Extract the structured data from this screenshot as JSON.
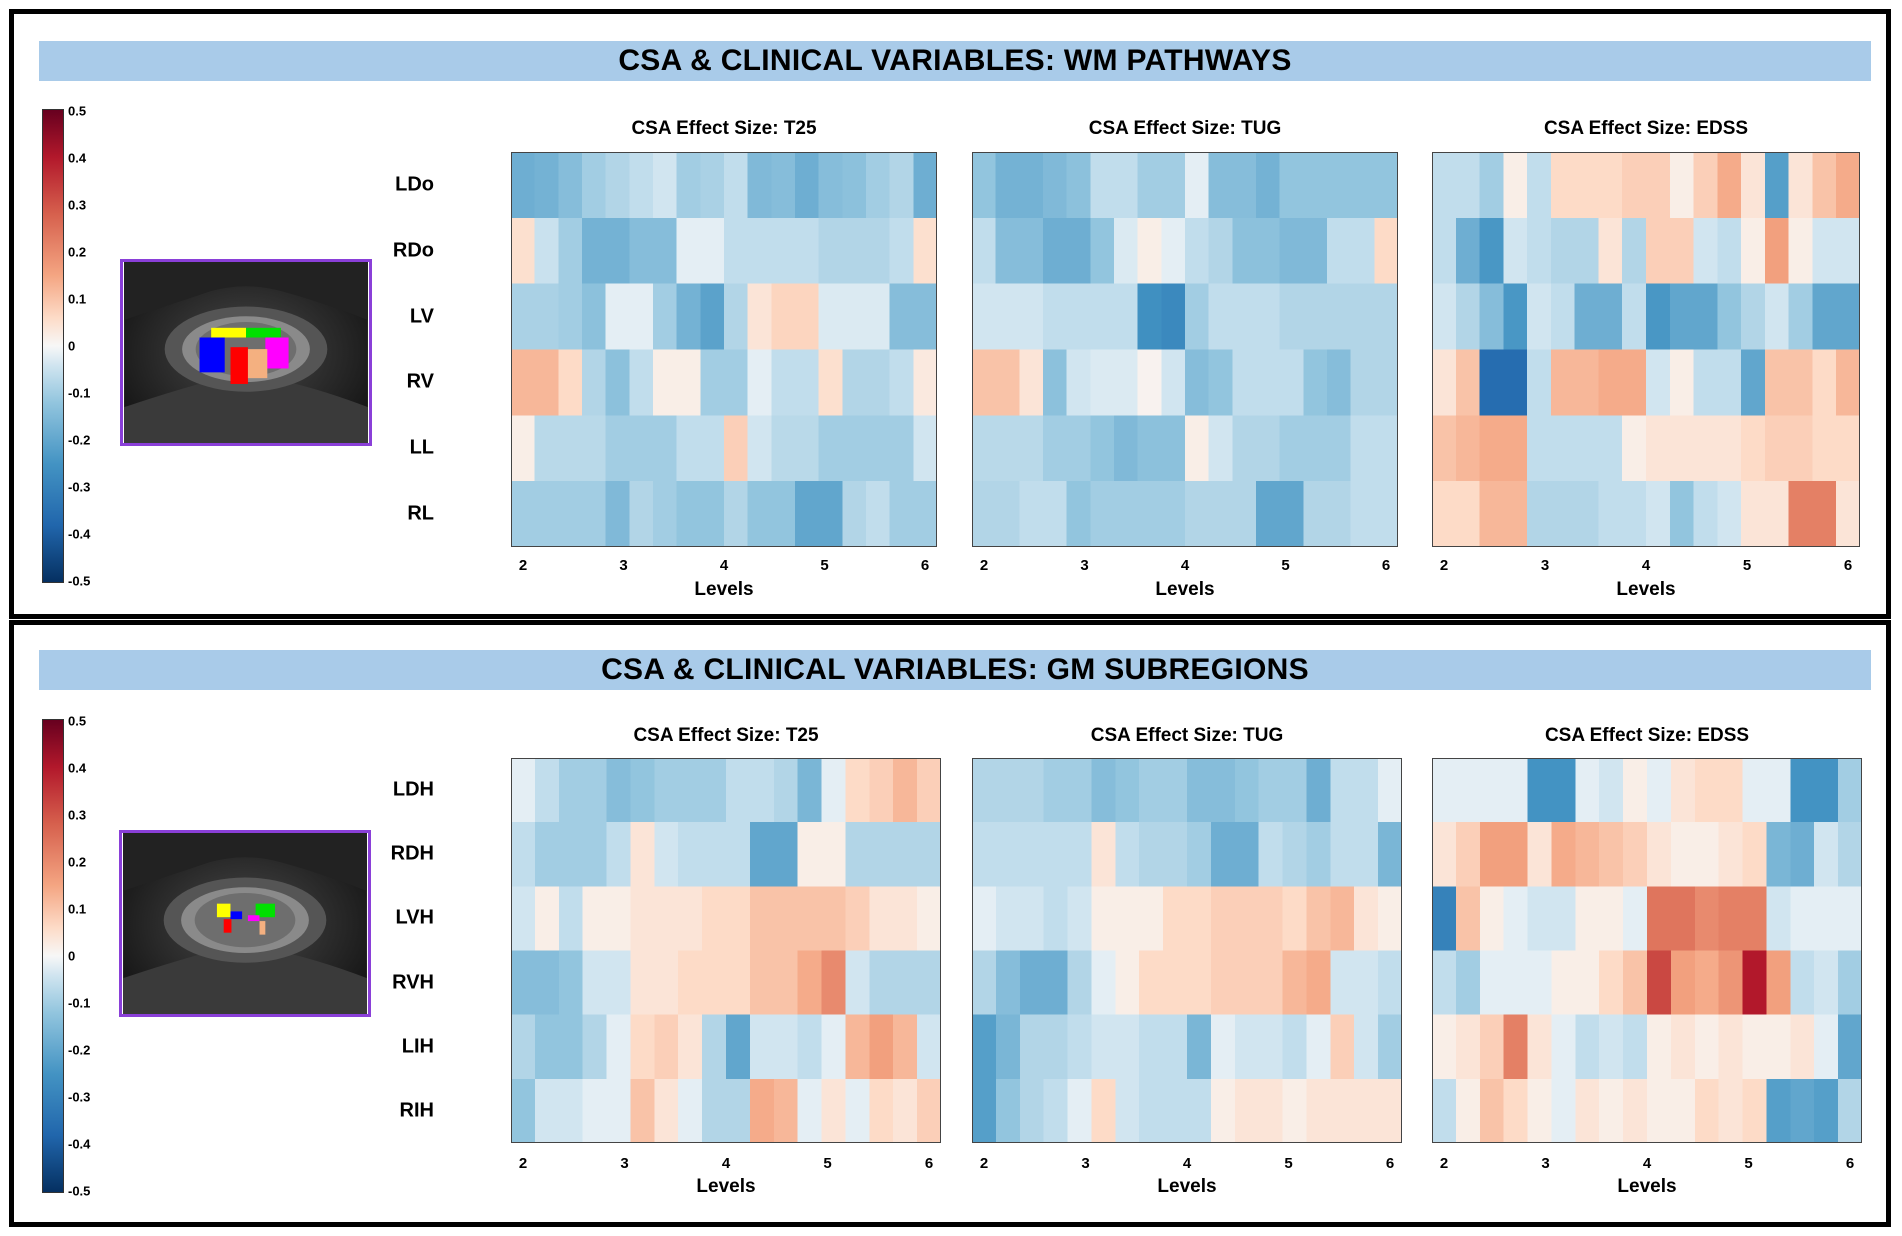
{
  "panels": [
    {
      "title": "CSA & CLINICAL VARIABLES: WM PATHWAYS",
      "rows": [
        "LDo",
        "RDo",
        "LV",
        "RV",
        "LL",
        "RL"
      ],
      "colorbar_ticks": [
        "0.5",
        "0.4",
        "0.3",
        "0.2",
        "0.1",
        "0",
        "-0.1",
        "-0.2",
        "-0.3",
        "-0.4",
        "-0.5"
      ],
      "thumbnail_icon": "spinal-cord-wm-segmentation-image",
      "heatmaps": [
        {
          "title": "CSA Effect Size: T25",
          "xlabel": "Levels",
          "xticks": [
            "2",
            "3",
            "4",
            "5",
            "6"
          ],
          "values": [
            [
              -0.18,
              -0.17,
              -0.14,
              -0.1,
              -0.08,
              -0.06,
              -0.04,
              -0.1,
              -0.09,
              -0.06,
              -0.15,
              -0.14,
              -0.18,
              -0.14,
              -0.13,
              -0.1,
              -0.08,
              -0.18
            ],
            [
              0.05,
              -0.05,
              -0.1,
              -0.17,
              -0.17,
              -0.14,
              -0.14,
              -0.02,
              -0.02,
              -0.06,
              -0.06,
              -0.06,
              -0.06,
              -0.08,
              -0.08,
              -0.08,
              -0.06,
              0.05
            ],
            [
              -0.09,
              -0.09,
              -0.1,
              -0.13,
              -0.02,
              -0.02,
              -0.1,
              -0.17,
              -0.21,
              -0.08,
              0.04,
              0.07,
              0.07,
              -0.03,
              -0.03,
              -0.03,
              -0.14,
              -0.14
            ],
            [
              0.12,
              0.12,
              0.06,
              -0.08,
              -0.13,
              -0.06,
              0.02,
              0.02,
              -0.1,
              -0.1,
              -0.02,
              -0.06,
              -0.06,
              0.05,
              -0.08,
              -0.08,
              -0.06,
              0.03
            ],
            [
              0.02,
              -0.07,
              -0.07,
              -0.07,
              -0.1,
              -0.1,
              -0.1,
              -0.06,
              -0.06,
              0.08,
              -0.04,
              -0.07,
              -0.07,
              -0.1,
              -0.1,
              -0.1,
              -0.1,
              -0.04
            ],
            [
              -0.1,
              -0.1,
              -0.1,
              -0.1,
              -0.15,
              -0.08,
              -0.1,
              -0.12,
              -0.12,
              -0.08,
              -0.12,
              -0.12,
              -0.2,
              -0.2,
              -0.08,
              -0.06,
              -0.1,
              -0.1
            ]
          ]
        },
        {
          "title": "CSA Effect Size: TUG",
          "xlabel": "Levels",
          "xticks": [
            "2",
            "3",
            "4",
            "5",
            "6"
          ],
          "values": [
            [
              -0.12,
              -0.17,
              -0.17,
              -0.15,
              -0.13,
              -0.06,
              -0.06,
              -0.1,
              -0.1,
              -0.02,
              -0.14,
              -0.14,
              -0.17,
              -0.12,
              -0.12,
              -0.12,
              -0.12,
              -0.12
            ],
            [
              -0.06,
              -0.14,
              -0.14,
              -0.18,
              -0.18,
              -0.12,
              -0.03,
              0.02,
              -0.02,
              -0.06,
              -0.08,
              -0.13,
              -0.13,
              -0.15,
              -0.15,
              -0.06,
              -0.06,
              0.06
            ],
            [
              -0.04,
              -0.04,
              -0.04,
              -0.06,
              -0.06,
              -0.06,
              -0.06,
              -0.26,
              -0.28,
              -0.1,
              -0.06,
              -0.06,
              -0.06,
              -0.08,
              -0.08,
              -0.08,
              -0.08,
              -0.08
            ],
            [
              0.1,
              0.1,
              0.04,
              -0.13,
              -0.04,
              -0.03,
              -0.03,
              0.01,
              -0.04,
              -0.14,
              -0.12,
              -0.06,
              -0.06,
              -0.06,
              -0.12,
              -0.14,
              -0.08,
              -0.08
            ],
            [
              -0.07,
              -0.07,
              -0.07,
              -0.1,
              -0.1,
              -0.12,
              -0.15,
              -0.13,
              -0.13,
              0.02,
              -0.04,
              -0.08,
              -0.08,
              -0.1,
              -0.1,
              -0.1,
              -0.06,
              -0.06
            ],
            [
              -0.08,
              -0.08,
              -0.06,
              -0.06,
              -0.12,
              -0.1,
              -0.1,
              -0.1,
              -0.1,
              -0.08,
              -0.08,
              -0.08,
              -0.2,
              -0.2,
              -0.08,
              -0.08,
              -0.06,
              -0.06
            ]
          ]
        },
        {
          "title": "CSA Effect Size: EDSS",
          "xlabel": "Levels",
          "xticks": [
            "2",
            "3",
            "4",
            "5",
            "6"
          ],
          "values": [
            [
              -0.06,
              -0.06,
              -0.1,
              0.02,
              -0.06,
              0.06,
              0.06,
              0.06,
              0.08,
              0.08,
              0.02,
              0.08,
              0.14,
              0.04,
              -0.22,
              0.04,
              0.1,
              0.14
            ],
            [
              -0.06,
              -0.18,
              -0.24,
              -0.04,
              -0.06,
              -0.08,
              -0.08,
              0.04,
              -0.08,
              0.08,
              0.08,
              -0.04,
              -0.06,
              0.02,
              0.16,
              0.02,
              -0.04,
              -0.04
            ],
            [
              -0.04,
              -0.08,
              -0.14,
              -0.24,
              -0.04,
              -0.06,
              -0.18,
              -0.18,
              -0.06,
              -0.24,
              -0.2,
              -0.2,
              -0.12,
              -0.08,
              -0.04,
              -0.1,
              -0.2,
              -0.2
            ],
            [
              0.04,
              0.1,
              -0.36,
              -0.36,
              -0.06,
              0.12,
              0.12,
              0.14,
              0.14,
              -0.04,
              0.02,
              -0.06,
              -0.06,
              -0.2,
              0.1,
              0.1,
              0.06,
              0.12
            ],
            [
              0.1,
              0.12,
              0.14,
              0.14,
              -0.06,
              -0.06,
              -0.06,
              -0.06,
              0.02,
              0.04,
              0.04,
              0.04,
              0.04,
              0.06,
              0.08,
              0.08,
              0.06,
              0.06
            ],
            [
              0.06,
              0.06,
              0.12,
              0.12,
              -0.08,
              -0.08,
              -0.08,
              -0.06,
              -0.06,
              -0.04,
              -0.12,
              -0.06,
              -0.04,
              0.04,
              0.04,
              0.22,
              0.22,
              0.04
            ]
          ]
        }
      ]
    },
    {
      "title": "CSA & CLINICAL VARIABLES: GM SUBREGIONS",
      "rows": [
        "LDH",
        "RDH",
        "LVH",
        "RVH",
        "LIH",
        "RIH"
      ],
      "colorbar_ticks": [
        "0.5",
        "0.4",
        "0.3",
        "0.2",
        "0.1",
        "0",
        "-0.1",
        "-0.2",
        "-0.3",
        "-0.4",
        "-0.5"
      ],
      "thumbnail_icon": "spinal-cord-gm-segmentation-image",
      "heatmaps": [
        {
          "title": "CSA Effect Size: T25",
          "xlabel": "Levels",
          "xticks": [
            "2",
            "3",
            "4",
            "5",
            "6"
          ],
          "values": [
            [
              -0.02,
              -0.06,
              -0.1,
              -0.1,
              -0.14,
              -0.12,
              -0.1,
              -0.1,
              -0.1,
              -0.06,
              -0.06,
              -0.08,
              -0.16,
              -0.02,
              0.06,
              0.08,
              0.12,
              0.08
            ],
            [
              -0.06,
              -0.1,
              -0.1,
              -0.1,
              -0.06,
              0.04,
              -0.04,
              -0.06,
              -0.06,
              -0.06,
              -0.2,
              -0.2,
              0.02,
              0.02,
              -0.08,
              -0.08,
              -0.08,
              -0.08
            ],
            [
              -0.04,
              0.02,
              -0.06,
              0.02,
              0.02,
              0.04,
              0.04,
              0.04,
              0.06,
              0.06,
              0.1,
              0.1,
              0.1,
              0.1,
              0.08,
              0.04,
              0.04,
              0.02
            ],
            [
              -0.14,
              -0.14,
              -0.12,
              -0.04,
              -0.04,
              0.04,
              0.04,
              0.06,
              0.06,
              0.06,
              0.1,
              0.1,
              0.14,
              0.2,
              -0.04,
              -0.08,
              -0.08,
              -0.08
            ],
            [
              -0.08,
              -0.12,
              -0.12,
              -0.08,
              -0.02,
              0.06,
              0.08,
              0.04,
              -0.08,
              -0.2,
              -0.04,
              -0.04,
              -0.06,
              -0.02,
              0.12,
              0.16,
              0.12,
              -0.04
            ],
            [
              -0.12,
              -0.04,
              -0.04,
              -0.02,
              -0.02,
              0.1,
              0.04,
              -0.02,
              -0.08,
              -0.08,
              0.14,
              0.12,
              -0.02,
              0.04,
              -0.02,
              0.06,
              0.04,
              0.08
            ]
          ]
        },
        {
          "title": "CSA Effect Size: TUG",
          "xlabel": "Levels",
          "xticks": [
            "2",
            "3",
            "4",
            "5",
            "6"
          ],
          "values": [
            [
              -0.08,
              -0.08,
              -0.08,
              -0.1,
              -0.1,
              -0.14,
              -0.12,
              -0.1,
              -0.1,
              -0.14,
              -0.14,
              -0.12,
              -0.1,
              -0.1,
              -0.18,
              -0.06,
              -0.06,
              -0.02
            ],
            [
              -0.06,
              -0.06,
              -0.06,
              -0.06,
              -0.06,
              0.04,
              -0.06,
              -0.08,
              -0.08,
              -0.1,
              -0.18,
              -0.18,
              -0.06,
              -0.08,
              -0.1,
              -0.06,
              -0.06,
              -0.16
            ],
            [
              -0.02,
              -0.04,
              -0.04,
              -0.06,
              -0.04,
              0.02,
              0.02,
              0.02,
              0.06,
              0.06,
              0.08,
              0.08,
              0.08,
              0.06,
              0.1,
              0.12,
              0.04,
              0.02
            ],
            [
              -0.08,
              -0.14,
              -0.18,
              -0.18,
              -0.08,
              -0.02,
              0.02,
              0.06,
              0.06,
              0.06,
              0.08,
              0.08,
              0.08,
              0.12,
              0.14,
              -0.04,
              -0.04,
              -0.06
            ],
            [
              -0.22,
              -0.16,
              -0.08,
              -0.08,
              -0.06,
              -0.04,
              -0.04,
              -0.06,
              -0.06,
              -0.16,
              -0.02,
              -0.04,
              -0.04,
              -0.06,
              -0.02,
              0.08,
              -0.04,
              -0.1
            ],
            [
              -0.22,
              -0.12,
              -0.08,
              -0.06,
              -0.02,
              0.06,
              -0.04,
              -0.06,
              -0.06,
              -0.06,
              0.02,
              0.04,
              0.04,
              0.02,
              0.04,
              0.04,
              0.04,
              0.04
            ]
          ]
        },
        {
          "title": "CSA Effect Size: EDSS",
          "xlabel": "Levels",
          "xticks": [
            "2",
            "3",
            "4",
            "5",
            "6"
          ],
          "values": [
            [
              -0.02,
              -0.02,
              -0.02,
              -0.02,
              -0.25,
              -0.25,
              -0.02,
              -0.04,
              0.02,
              -0.02,
              0.04,
              0.06,
              0.06,
              -0.02,
              -0.02,
              -0.25,
              -0.25,
              -0.1
            ],
            [
              0.04,
              0.08,
              0.16,
              0.16,
              0.04,
              0.14,
              0.12,
              0.1,
              0.08,
              0.04,
              0.02,
              0.02,
              0.04,
              0.06,
              -0.16,
              -0.18,
              -0.04,
              -0.08
            ],
            [
              -0.3,
              0.1,
              0.02,
              -0.02,
              -0.04,
              -0.04,
              0.02,
              0.02,
              -0.02,
              0.24,
              0.24,
              0.2,
              0.22,
              0.22,
              -0.04,
              -0.02,
              -0.02,
              -0.02
            ],
            [
              -0.06,
              -0.1,
              -0.02,
              -0.02,
              -0.02,
              0.02,
              0.02,
              0.06,
              0.1,
              0.32,
              0.16,
              0.14,
              0.18,
              0.4,
              0.16,
              -0.06,
              -0.04,
              -0.1
            ],
            [
              0.02,
              0.04,
              0.08,
              0.22,
              0.04,
              -0.02,
              -0.06,
              -0.04,
              -0.06,
              0.02,
              0.04,
              0.02,
              0.04,
              0.02,
              0.02,
              0.04,
              -0.02,
              -0.2
            ],
            [
              -0.06,
              0.02,
              0.1,
              0.06,
              0.02,
              -0.02,
              0.04,
              0.02,
              0.04,
              0.02,
              0.02,
              0.06,
              0.04,
              0.06,
              -0.22,
              -0.2,
              -0.22,
              -0.08
            ]
          ]
        }
      ]
    }
  ],
  "chart_data": [
    {
      "type": "heatmap",
      "title": "CSA Effect Size: T25",
      "section": "CSA & CLINICAL VARIABLES: WM PATHWAYS",
      "xlabel": "Levels",
      "ylabel": "",
      "xlim": [
        2,
        6
      ],
      "clim": [
        -0.5,
        0.5
      ],
      "rows": [
        "LDo",
        "RDo",
        "LV",
        "RV",
        "LL",
        "RL"
      ],
      "values_ref": "panels.0.heatmaps.0.values"
    },
    {
      "type": "heatmap",
      "title": "CSA Effect Size: TUG",
      "section": "CSA & CLINICAL VARIABLES: WM PATHWAYS",
      "xlabel": "Levels",
      "ylabel": "",
      "xlim": [
        2,
        6
      ],
      "clim": [
        -0.5,
        0.5
      ],
      "rows": [
        "LDo",
        "RDo",
        "LV",
        "RV",
        "LL",
        "RL"
      ],
      "values_ref": "panels.0.heatmaps.1.values"
    },
    {
      "type": "heatmap",
      "title": "CSA Effect Size: EDSS",
      "section": "CSA & CLINICAL VARIABLES: WM PATHWAYS",
      "xlabel": "Levels",
      "ylabel": "",
      "xlim": [
        2,
        6
      ],
      "clim": [
        -0.5,
        0.5
      ],
      "rows": [
        "LDo",
        "RDo",
        "LV",
        "RV",
        "LL",
        "RL"
      ],
      "values_ref": "panels.0.heatmaps.2.values"
    },
    {
      "type": "heatmap",
      "title": "CSA Effect Size: T25",
      "section": "CSA & CLINICAL VARIABLES: GM SUBREGIONS",
      "xlabel": "Levels",
      "ylabel": "",
      "xlim": [
        2,
        6
      ],
      "clim": [
        -0.5,
        0.5
      ],
      "rows": [
        "LDH",
        "RDH",
        "LVH",
        "RVH",
        "LIH",
        "RIH"
      ],
      "values_ref": "panels.1.heatmaps.0.values"
    },
    {
      "type": "heatmap",
      "title": "CSA Effect Size: TUG",
      "section": "CSA & CLINICAL VARIABLES: GM SUBREGIONS",
      "xlabel": "Levels",
      "ylabel": "",
      "xlim": [
        2,
        6
      ],
      "clim": [
        -0.5,
        0.5
      ],
      "rows": [
        "LDH",
        "RDH",
        "LVH",
        "RVH",
        "LIH",
        "RIH"
      ],
      "values_ref": "panels.1.heatmaps.1.values"
    },
    {
      "type": "heatmap",
      "title": "CSA Effect Size: EDSS",
      "section": "CSA & CLINICAL VARIABLES: GM SUBREGIONS",
      "xlabel": "Levels",
      "ylabel": "",
      "xlim": [
        2,
        6
      ],
      "clim": [
        -0.5,
        0.5
      ],
      "rows": [
        "LDH",
        "RDH",
        "LVH",
        "RVH",
        "LIH",
        "RIH"
      ],
      "values_ref": "panels.1.heatmaps.2.values"
    }
  ]
}
